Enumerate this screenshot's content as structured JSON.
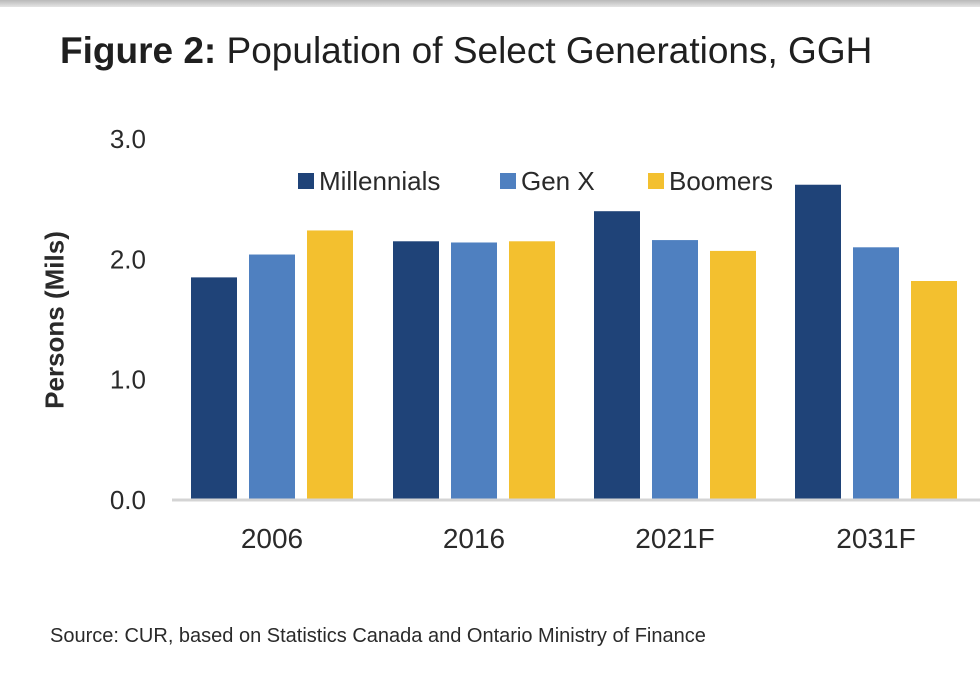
{
  "title": {
    "prefix": "Figure 2:",
    "text": "Population of Select Generations, GGH"
  },
  "source": "Source: CUR, based on Statistics Canada and Ontario Ministry of Finance",
  "colors": {
    "millennials": "#1f4378",
    "genx": "#4f80c0",
    "boomers": "#f3c02f"
  },
  "chart_data": {
    "type": "bar",
    "title": "Population of Select Generations, GGH",
    "xlabel": "",
    "ylabel": "Persons (Mils)",
    "categories": [
      "2006",
      "2016",
      "2021F",
      "2031F"
    ],
    "series": [
      {
        "name": "Millennials",
        "values": [
          1.85,
          2.15,
          2.4,
          2.62
        ]
      },
      {
        "name": "Gen X",
        "values": [
          2.04,
          2.14,
          2.16,
          2.1
        ]
      },
      {
        "name": "Boomers",
        "values": [
          2.24,
          2.15,
          2.07,
          1.82
        ]
      }
    ],
    "ylim": [
      0,
      3
    ],
    "yticks": [
      "0.0",
      "1.0",
      "2.0",
      "3.0"
    ],
    "grid": false,
    "legend": "top"
  }
}
